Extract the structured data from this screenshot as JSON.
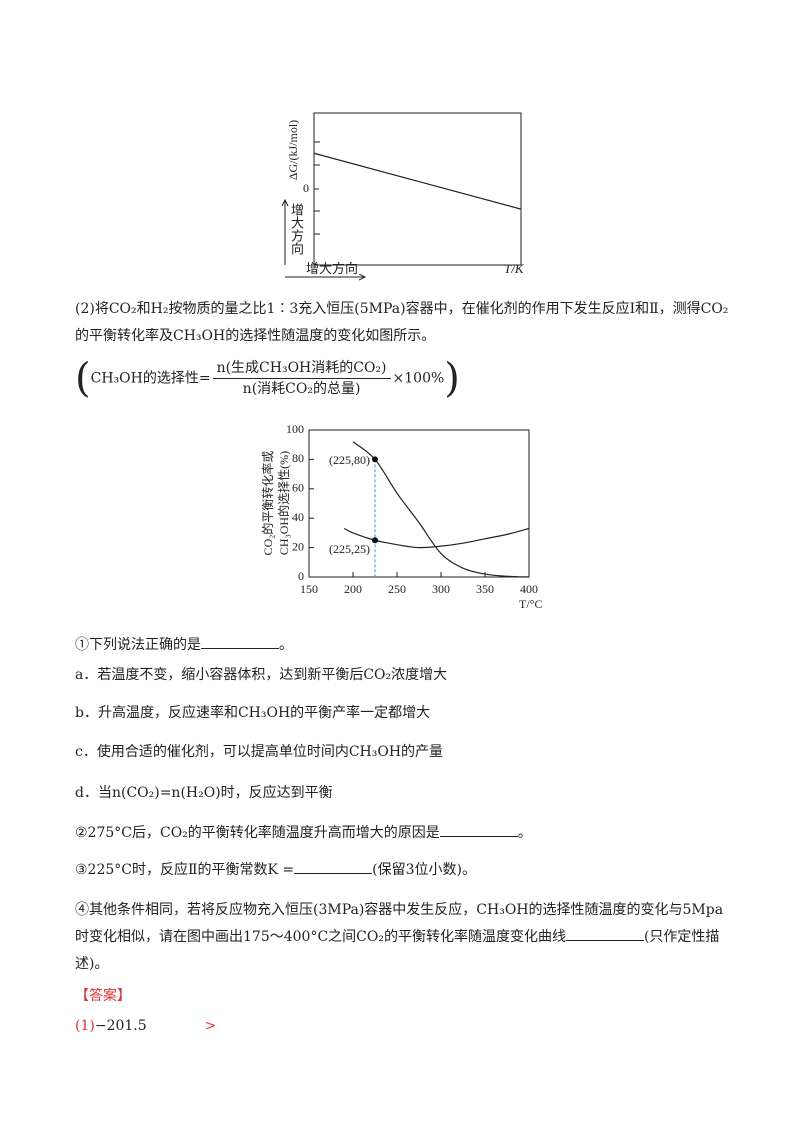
{
  "chart_data": [
    {
      "type": "line",
      "y_label": "ΔG/(kJ/mol)",
      "x_label": "T/K",
      "x_direction_label": "增大方向",
      "y_direction_label": "增大方向",
      "xlim": [
        0,
        1
      ],
      "ylim": [
        -3.4,
        3.4
      ],
      "yticks": [
        0
      ],
      "series": [
        {
          "color": "#222222",
          "x": [
            0,
            1
          ],
          "values": [
            1.6,
            -0.9
          ]
        }
      ]
    },
    {
      "type": "line",
      "y_label": [
        "CO₂的平衡转化率或",
        "CH₃OH的选择性(%)"
      ],
      "x_label": "T/°C",
      "xlim": [
        150,
        400
      ],
      "ylim": [
        0,
        100
      ],
      "xticks": [
        150,
        200,
        250,
        300,
        350,
        400
      ],
      "yticks": [
        0,
        20,
        40,
        60,
        80,
        100
      ],
      "series": [
        {
          "color": "#222222",
          "x": [
            200,
            225,
            250,
            275,
            300,
            325,
            350,
            375,
            400
          ],
          "values": [
            92,
            80,
            57,
            37,
            16,
            6,
            2,
            0.5,
            0
          ]
        },
        {
          "color": "#222222",
          "x": [
            190,
            200,
            225,
            250,
            275,
            300,
            325,
            350,
            375,
            400
          ],
          "values": [
            33,
            30,
            25,
            22,
            20,
            21,
            23,
            26,
            29,
            33
          ]
        }
      ],
      "points": [
        {
          "label": "(225,80)",
          "x": 225,
          "y": 80
        },
        {
          "label": "(225,25)",
          "x": 225,
          "y": 25
        }
      ]
    }
  ],
  "document": {
    "intro": "(2)将CO₂和H₂按物质的量之比1∶3充入恒压(5MPa)容器中，在催化剂的作用下发生反应Ⅰ和Ⅱ，测得CO₂的平衡转化率及CH₃OH的选择性随温度的变化如图所示。",
    "formula": {
      "lhs": "CH₃OH的选择性=",
      "numerator": "n(生成CH₃OH消耗的CO₂)",
      "denominator": "n(消耗CO₂的总量)",
      "factor": "×100%"
    },
    "q1": {
      "text": "①下列说法正确的是",
      "end": "。"
    },
    "options": [
      "a．若温度不变，缩小容器体积，达到新平衡后CO₂浓度增大",
      "b．升高温度，反应速率和CH₃OH的平衡产率一定都增大",
      "c．使用合适的催化剂，可以提高单位时间内CH₃OH的产量",
      "d．当n(CO₂)=n(H₂O)时，反应达到平衡"
    ],
    "q2": {
      "text": "②275°C后，CO₂的平衡转化率随温度升高而增大的原因是",
      "end": "。"
    },
    "q3": {
      "text": "③225°C时，反应Ⅱ的平衡常数K =",
      "end": "(保留3位小数)。"
    },
    "q4": {
      "text": "④其他条件相同，若将反应物充入恒压(3MPa)容器中发生反应，CH₃OH的选择性随温度的变化与5Mpa时变化相似，请在图中画出175～400°C之间CO₂的平衡转化率随温度变化曲线",
      "end": "(只作定性描述)。"
    },
    "answer": {
      "heading": "【答案】",
      "label": "(1)",
      "value": "−201.5",
      "relation": ">"
    }
  }
}
